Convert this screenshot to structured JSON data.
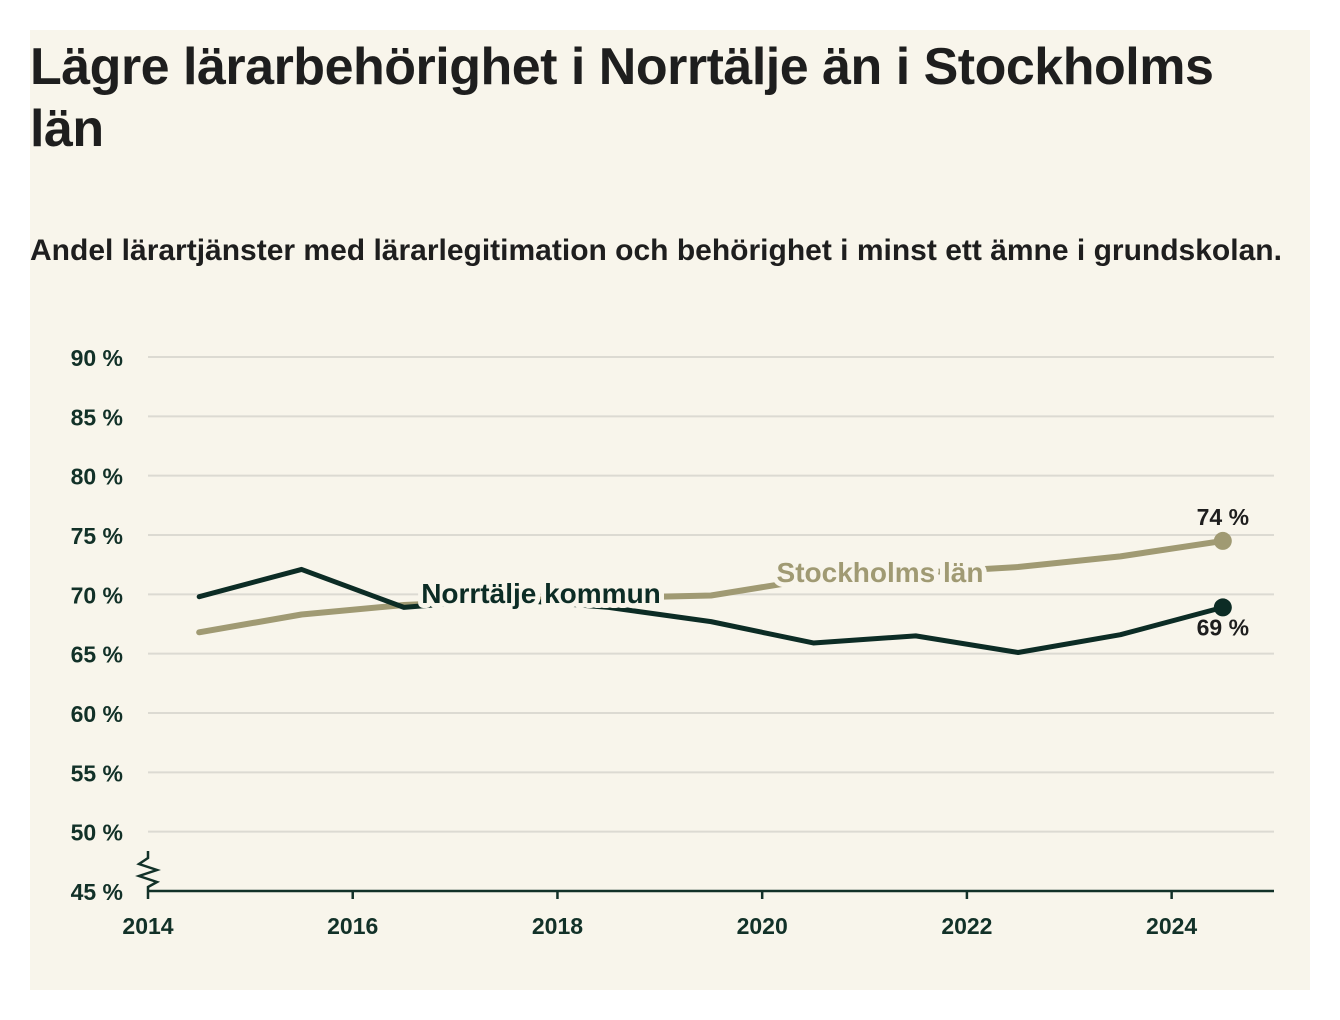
{
  "title": "Lägre lärarbehörighet i Norrtälje än i Stockholms län",
  "subtitle": "Andel lärartjänster med lärarlegitimation och behörighet i minst ett ämne i grundskolan.",
  "colors": {
    "background": "#f8f5eb",
    "norrtalje": "#0c2c25",
    "stockholm": "#a09a73",
    "grid": "#dcdad2",
    "axis": "#123128"
  },
  "chart_data": {
    "type": "line",
    "title": "Lägre lärarbehörighet i Norrtälje än i Stockholms län",
    "subtitle": "Andel lärartjänster med lärarlegitimation och behörighet i minst ett ämne i grundskolan.",
    "xlabel": "",
    "ylabel": "",
    "y_unit": "%",
    "ylim": [
      45,
      90
    ],
    "yticks": [
      45,
      50,
      55,
      60,
      65,
      70,
      75,
      80,
      85,
      90
    ],
    "ytick_labels": [
      "45 %",
      "50 %",
      "55 %",
      "60 %",
      "65 %",
      "70 %",
      "75 %",
      "80 %",
      "85 %",
      "90 %"
    ],
    "xlim": [
      2014,
      2025
    ],
    "xticks": [
      2014,
      2016,
      2018,
      2020,
      2022,
      2024
    ],
    "xtick_labels": [
      "2014",
      "2016",
      "2018",
      "2020",
      "2022",
      "2024"
    ],
    "axis_break": true,
    "grid": true,
    "series": [
      {
        "name": "Stockholms län",
        "color": "#a09a73",
        "x": [
          2014.5,
          2015.5,
          2016.5,
          2017.5,
          2018.5,
          2019.5,
          2020.5,
          2021.5,
          2022.5,
          2023.5,
          2024.5
        ],
        "y": [
          66.8,
          68.3,
          69.1,
          69.5,
          69.7,
          69.9,
          71.3,
          71.8,
          72.3,
          73.2,
          74.5
        ],
        "end_label": "74 %"
      },
      {
        "name": "Norrtälje kommun",
        "color": "#0c2c25",
        "x": [
          2014.5,
          2015.5,
          2016.5,
          2017.5,
          2018.5,
          2019.5,
          2020.5,
          2021.5,
          2022.5,
          2023.5,
          2024.5
        ],
        "y": [
          69.8,
          72.1,
          68.9,
          69.6,
          68.9,
          67.7,
          65.9,
          66.5,
          65.1,
          66.6,
          68.9
        ],
        "end_label": "69 %"
      }
    ]
  }
}
